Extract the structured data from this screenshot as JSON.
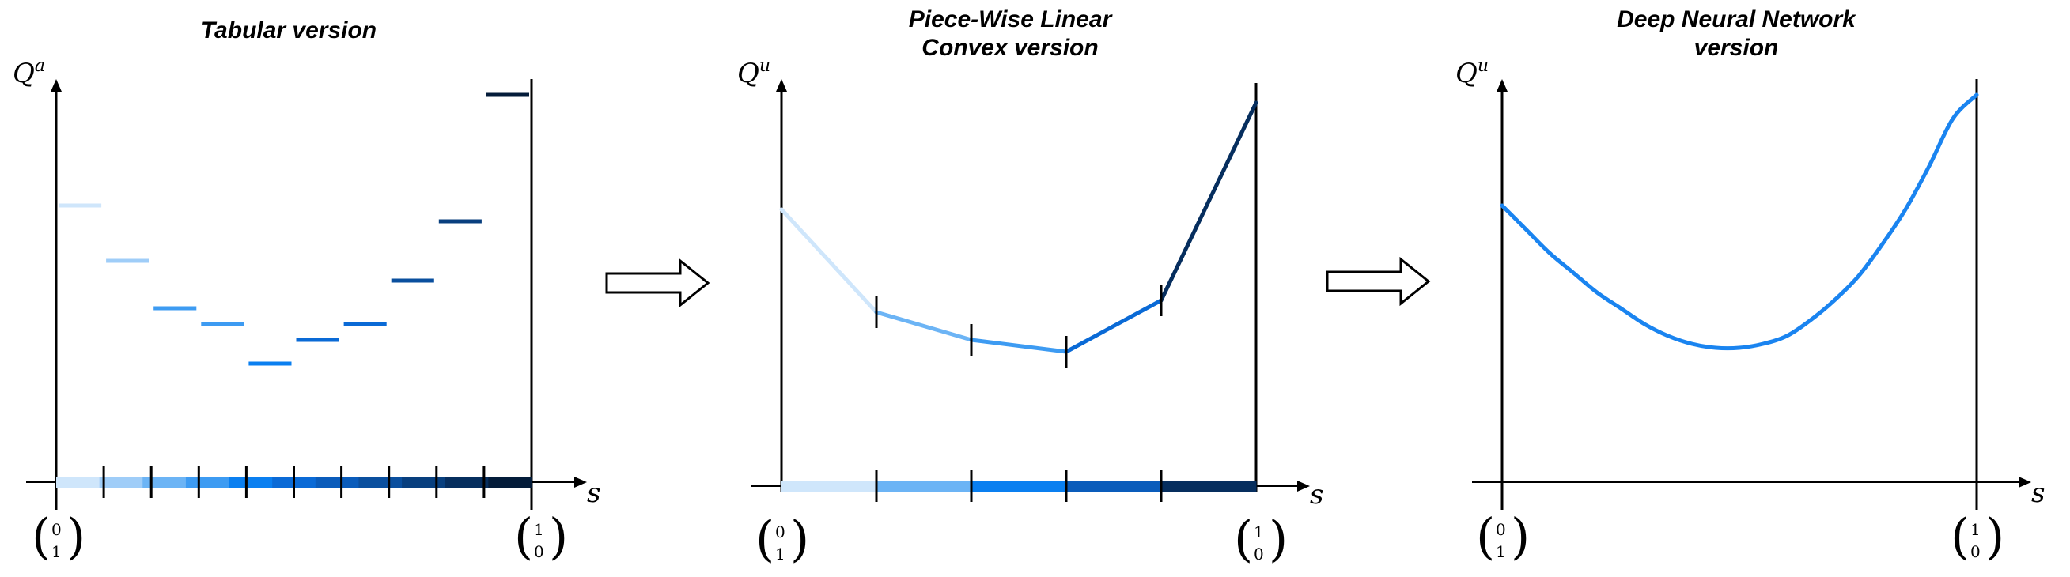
{
  "colors": {
    "c1": "#cfe6fb",
    "c2": "#9fcdf8",
    "c3": "#6cb4f5",
    "c4": "#3d9bf2",
    "c5": "#0a7ff0",
    "c6": "#0a6ad6",
    "c7": "#0a5cbb",
    "c8": "#0a4f9e",
    "c9": "#083f7e",
    "c10": "#062e5e",
    "c11": "#041c3a",
    "curve": "#1a84f0",
    "axis": "#000000"
  },
  "panels": [
    {
      "title": [
        "Tabular version"
      ],
      "y_label": "Q",
      "y_sup": "a",
      "x_label": "s",
      "left_vec": [
        "0",
        "1"
      ],
      "right_vec": [
        "1",
        "0"
      ],
      "bins": 10,
      "step_values": [
        0.7,
        0.56,
        0.44,
        0.4,
        0.3,
        0.36,
        0.4,
        0.51,
        0.66,
        0.98
      ],
      "step_colors": [
        "c1",
        "c2",
        "c4",
        "c4",
        "c5",
        "c6",
        "c6",
        "c8",
        "c9",
        "c11"
      ],
      "bar_colors": [
        "c1",
        "c2",
        "c3",
        "c4",
        "c5",
        "c6",
        "c7",
        "c8",
        "c9",
        "c10",
        "c11"
      ]
    },
    {
      "title": [
        "Piece-Wise Linear",
        "Convex version"
      ],
      "y_label": "Q",
      "y_sup": "u",
      "x_label": "s",
      "left_vec": [
        "0",
        "1"
      ],
      "right_vec": [
        "1",
        "0"
      ],
      "knots_x": [
        0.0,
        0.2,
        0.4,
        0.6,
        0.8,
        1.0
      ],
      "knots_y": [
        0.7,
        0.44,
        0.37,
        0.34,
        0.47,
        0.97
      ],
      "segment_colors": [
        "c1",
        "c3",
        "c4",
        "c6",
        "c10"
      ],
      "bar_colors": [
        "c1",
        "c3",
        "c5",
        "c7",
        "c10"
      ]
    },
    {
      "title": [
        "Deep Neural Network",
        "version"
      ],
      "y_label": "Q",
      "y_sup": "u",
      "x_label": "s",
      "left_vec": [
        "0",
        "1"
      ],
      "right_vec": [
        "1",
        "0"
      ],
      "curve_points": [
        [
          0.0,
          0.7
        ],
        [
          0.05,
          0.64
        ],
        [
          0.1,
          0.58
        ],
        [
          0.15,
          0.53
        ],
        [
          0.2,
          0.48
        ],
        [
          0.25,
          0.44
        ],
        [
          0.3,
          0.4
        ],
        [
          0.35,
          0.37
        ],
        [
          0.4,
          0.35
        ],
        [
          0.45,
          0.34
        ],
        [
          0.5,
          0.34
        ],
        [
          0.55,
          0.35
        ],
        [
          0.6,
          0.37
        ],
        [
          0.65,
          0.41
        ],
        [
          0.7,
          0.46
        ],
        [
          0.75,
          0.52
        ],
        [
          0.8,
          0.6
        ],
        [
          0.85,
          0.69
        ],
        [
          0.9,
          0.8
        ],
        [
          0.95,
          0.92
        ],
        [
          1.0,
          0.98
        ]
      ]
    }
  ],
  "arrows": [
    "transition-arrow-1",
    "transition-arrow-2"
  ]
}
